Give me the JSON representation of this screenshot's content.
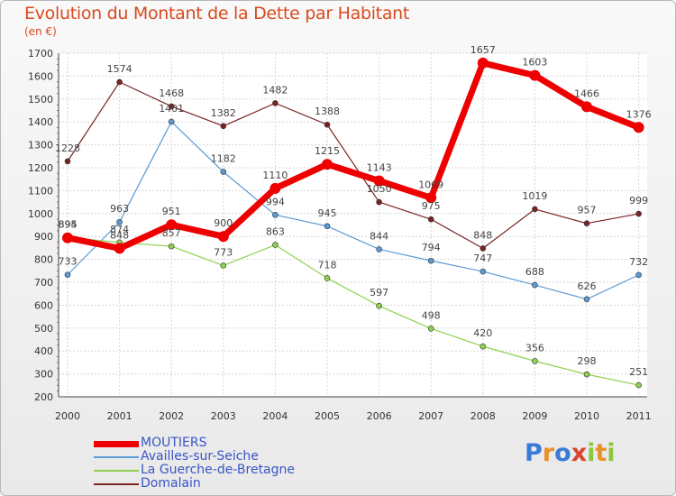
{
  "header": {
    "title": "Evolution du Montant de la Dette par Habitant",
    "unit": "(en €)"
  },
  "logo": {
    "text": "Proxiti",
    "letters": [
      "P",
      "r",
      "o",
      "x",
      "i",
      "t",
      "i"
    ]
  },
  "chart_data": {
    "type": "line",
    "title": "Evolution du Montant de la Dette par Habitant",
    "subtitle": "(en €)",
    "xlabel": "",
    "ylabel": "",
    "ylim": [
      200,
      1700
    ],
    "grid": true,
    "legend_position": "bottom-left",
    "x": [
      "2000",
      "2001",
      "2002",
      "2003",
      "2004",
      "2005",
      "2006",
      "2007",
      "2008",
      "2009",
      "2010",
      "2011"
    ],
    "y_ticks": [
      "200",
      "300",
      "400",
      "500",
      "600",
      "700",
      "800",
      "900",
      "1000",
      "1100",
      "1200",
      "1300",
      "1400",
      "1500",
      "1600",
      "1700"
    ],
    "series": [
      {
        "name": "MOUTIERS",
        "color": "#ee0000",
        "emphasis": "thick",
        "values": [
          894,
          848,
          951,
          900,
          1110,
          1215,
          1143,
          1069,
          1657,
          1603,
          1466,
          1376
        ],
        "labels": [
          "894",
          "848",
          "951",
          "900",
          "1110",
          "1215",
          "1143",
          "1069",
          "1657",
          "1603",
          "1466",
          "1376"
        ]
      },
      {
        "name": "Availles-sur-Seiche",
        "color": "#5b9bd5",
        "emphasis": "normal",
        "values": [
          733,
          963,
          1401,
          1182,
          994,
          945,
          844,
          794,
          747,
          688,
          626,
          732
        ],
        "labels": [
          "733",
          "963",
          "1401",
          "1182",
          "994",
          "945",
          "844",
          "794",
          "747",
          "688",
          "626",
          "732"
        ]
      },
      {
        "name": "La Guerche-de-Bretagne",
        "color": "#8fd14f",
        "emphasis": "normal",
        "values": [
          895,
          874,
          857,
          773,
          863,
          718,
          597,
          498,
          420,
          356,
          298,
          251
        ],
        "labels": [
          "895",
          "874",
          "857",
          "773",
          "863",
          "718",
          "597",
          "498",
          "420",
          "356",
          "298",
          "251"
        ]
      },
      {
        "name": "Domalain",
        "color": "#7b2323",
        "emphasis": "normal",
        "values": [
          1228,
          1574,
          1468,
          1382,
          1482,
          1388,
          1050,
          975,
          848,
          1019,
          957,
          999
        ],
        "labels": [
          "1228",
          "1574",
          "1468",
          "1382",
          "1482",
          "1388",
          "1050",
          "975",
          "848",
          "1019",
          "957",
          "999"
        ]
      }
    ]
  }
}
